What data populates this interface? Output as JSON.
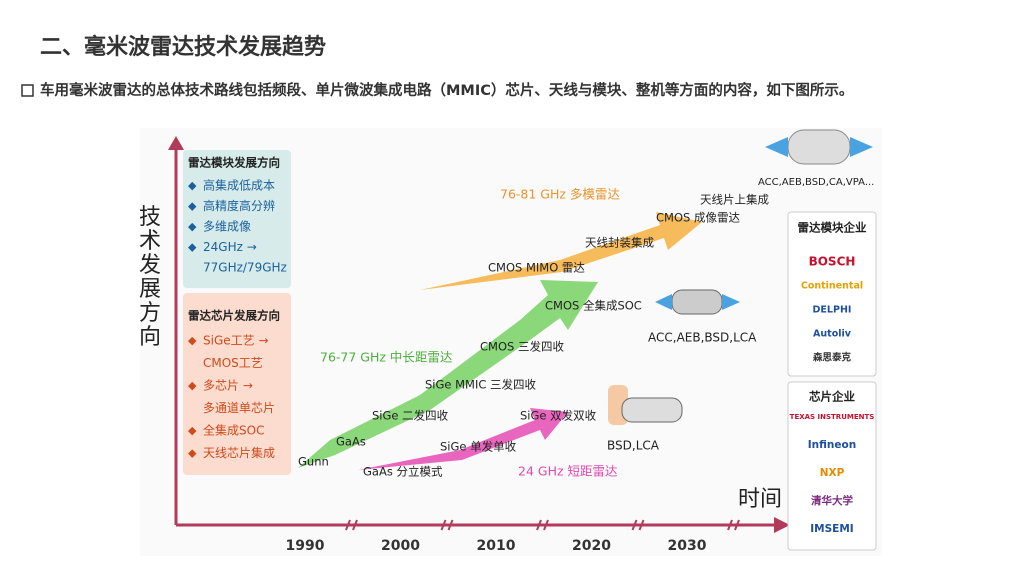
{
  "header": {
    "title": "二、毫米波雷达技术发展趋势",
    "bullet": "车用毫米波雷达的总体技术路线包括频段、单片微波集成电路（MMIC）芯片、天线与模块、整机等方面的内容，如下图所示。"
  },
  "axes": {
    "y_label": "技术发展方向",
    "x_label": "时间",
    "years": [
      "1990",
      "2000",
      "2010",
      "2020",
      "2030"
    ]
  },
  "module_box": {
    "title": "雷达模块发展方向",
    "items": [
      "高集成低成本",
      "高精度高分辨",
      "多维成像",
      "24GHz →",
      "77GHz/79GHz"
    ]
  },
  "chip_box": {
    "title": "雷达芯片发展方向",
    "items": [
      "SiGe工艺 →",
      "CMOS工艺",
      "多芯片 →",
      "多通道单芯片",
      "全集成SOC",
      "天线芯片集成"
    ]
  },
  "arrows": [
    {
      "label": "76-81 GHz 多模雷达",
      "milestones": [
        "CMOS MIMO 雷达",
        "天线封装集成",
        "CMOS 成像雷达",
        "天线片上集成"
      ],
      "application": "ACC,AEB,BSD,CA,VPA..."
    },
    {
      "label": "76-77 GHz 中长距雷达",
      "milestones": [
        "Gunn",
        "GaAs",
        "SiGe 二发四收",
        "SiGe MMIC 三发四收",
        "CMOS 三发四收",
        "CMOS 全集成SOC"
      ],
      "application": "ACC,AEB,BSD,LCA"
    },
    {
      "label": "24 GHz 短距雷达",
      "milestones": [
        "GaAs 分立模式",
        "SiGe 单发单收",
        "SiGe 双发双收"
      ],
      "application": "BSD,LCA"
    }
  ],
  "companies": {
    "module_title": "雷达模块企业",
    "module": [
      "BOSCH",
      "Continental",
      "DELPHI",
      "Autoliv",
      "森思泰克"
    ],
    "chip_title": "芯片企业",
    "chip": [
      "TEXAS INSTRUMENTS",
      "Infineon",
      "NXP",
      "清华大学",
      "IMSEMI"
    ]
  }
}
